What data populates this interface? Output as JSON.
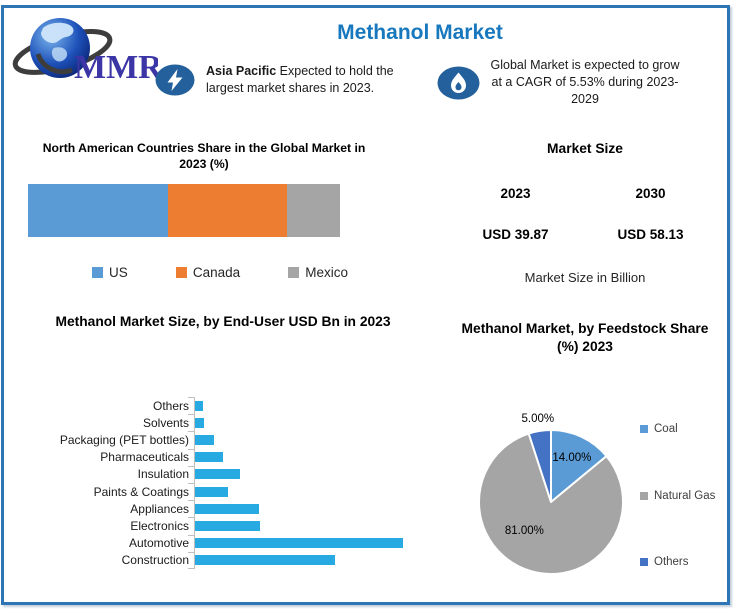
{
  "brand": {
    "logo_text": "MMR"
  },
  "header": {
    "title": "Methanol Market"
  },
  "callouts": [
    {
      "icon": "lightning-icon",
      "bold_lead": "Asia Pacific",
      "text_rest": " Expected to hold the largest market shares in 2023."
    },
    {
      "icon": "flame-icon",
      "text": "Global Market is expected to grow at a CAGR of 5.53% during 2023-2029"
    }
  ],
  "market_size": {
    "heading": "Market Size",
    "years": [
      "2023",
      "2030"
    ],
    "values": [
      "USD 39.87",
      "USD 58.13"
    ],
    "caption": "Market Size in Billion"
  },
  "colors": {
    "accent_blue": "#1878BE",
    "border_blue": "#2E75B6",
    "icon_ellipse_blue": "#24609B",
    "bar_cyan": "#27A9E1",
    "us_blue": "#5B9BD5",
    "canada_orange": "#ED7D31",
    "mexico_gray": "#A5A5A5",
    "others_dark_blue": "#4472C4"
  },
  "chart_data": [
    {
      "type": "bar",
      "subtype": "stacked-horizontal-100pct",
      "title": "North American Countries Share in the Global Market in 2023 (%)",
      "unit": "%",
      "legend_position": "bottom",
      "series": [
        {
          "name": "US",
          "value": 45,
          "color": "#5B9BD5"
        },
        {
          "name": "Canada",
          "value": 38,
          "color": "#ED7D31"
        },
        {
          "name": "Mexico",
          "value": 17,
          "color": "#A5A5A5"
        }
      ]
    },
    {
      "type": "bar",
      "subtype": "horizontal",
      "title": "Methanol Market Size, by End-User USD Bn  in 2023",
      "xlabel": "",
      "ylabel": "",
      "bar_color": "#27A9E1",
      "categories": [
        "Others",
        "Solvents",
        "Packaging (PET bottles)",
        "Pharmaceuticals",
        "Insulation",
        "Paints & Coatings",
        "Appliances",
        "Electronics",
        "Automotive",
        "Construction"
      ],
      "values": [
        0.5,
        0.6,
        1.2,
        1.8,
        2.9,
        2.1,
        4.1,
        4.2,
        13.4,
        9.0
      ]
    },
    {
      "type": "pie",
      "title": "Methanol Market, by Feedstock Share (%) 2023",
      "legend_position": "right",
      "labels": [
        "Coal",
        "Natural Gas",
        "Others"
      ],
      "values": [
        14,
        81,
        5
      ],
      "data_labels": [
        "14.00%",
        "81.00%",
        "5.00%"
      ],
      "colors": [
        "#5B9BD5",
        "#A5A5A5",
        "#4472C4"
      ]
    }
  ]
}
